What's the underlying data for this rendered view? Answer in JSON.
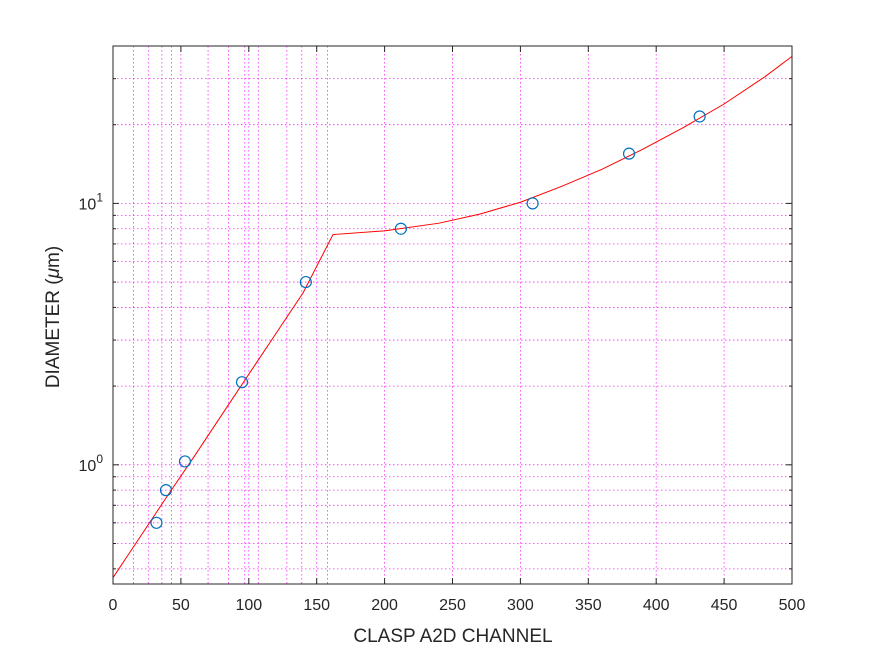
{
  "chart_data": {
    "type": "scatter",
    "title": "",
    "xlabel": "CLASP A2D CHANNEL",
    "ylabel_text": "DIAMETER (",
    "ylabel_symbol": "μ",
    "ylabel_unit": "m)",
    "xlim": [
      0,
      500
    ],
    "ylim": [
      0.35,
      40
    ],
    "yscale": "log",
    "grid": true,
    "x_ticks": [
      0,
      50,
      100,
      150,
      200,
      250,
      300,
      350,
      400,
      450,
      500
    ],
    "x_tick_labels": [
      "0",
      "50",
      "100",
      "150",
      "200",
      "250",
      "300",
      "350",
      "400",
      "450",
      "500"
    ],
    "y_ticks": [
      {
        "value": 1,
        "base": "10",
        "exp": "0"
      },
      {
        "value": 10,
        "base": "10",
        "exp": "1"
      }
    ],
    "series": [
      {
        "type": "scatter",
        "marker": "circle",
        "color": "#0072bd",
        "x": [
          32,
          39,
          53,
          95,
          142,
          212,
          309,
          380,
          432
        ],
        "y": [
          0.6,
          0.8,
          1.03,
          2.07,
          5.0,
          8.0,
          10.0,
          15.5,
          21.5
        ]
      },
      {
        "type": "line",
        "color": "#ff0000",
        "x": [
          0,
          20,
          40,
          60,
          80,
          100,
          120,
          140,
          162,
          200,
          240,
          270,
          300,
          330,
          360,
          390,
          420,
          450,
          480,
          500
        ],
        "y": [
          0.37,
          0.53,
          0.76,
          1.08,
          1.55,
          2.22,
          3.18,
          4.55,
          7.6,
          7.85,
          8.4,
          9.1,
          10.1,
          11.6,
          13.5,
          16.1,
          19.5,
          24.0,
          30.5,
          36.5
        ]
      }
    ]
  },
  "colors": {
    "grid": "#ff00ff",
    "fit_line": "#ff0000",
    "markers": "#0072bd",
    "axis": "#262626"
  }
}
